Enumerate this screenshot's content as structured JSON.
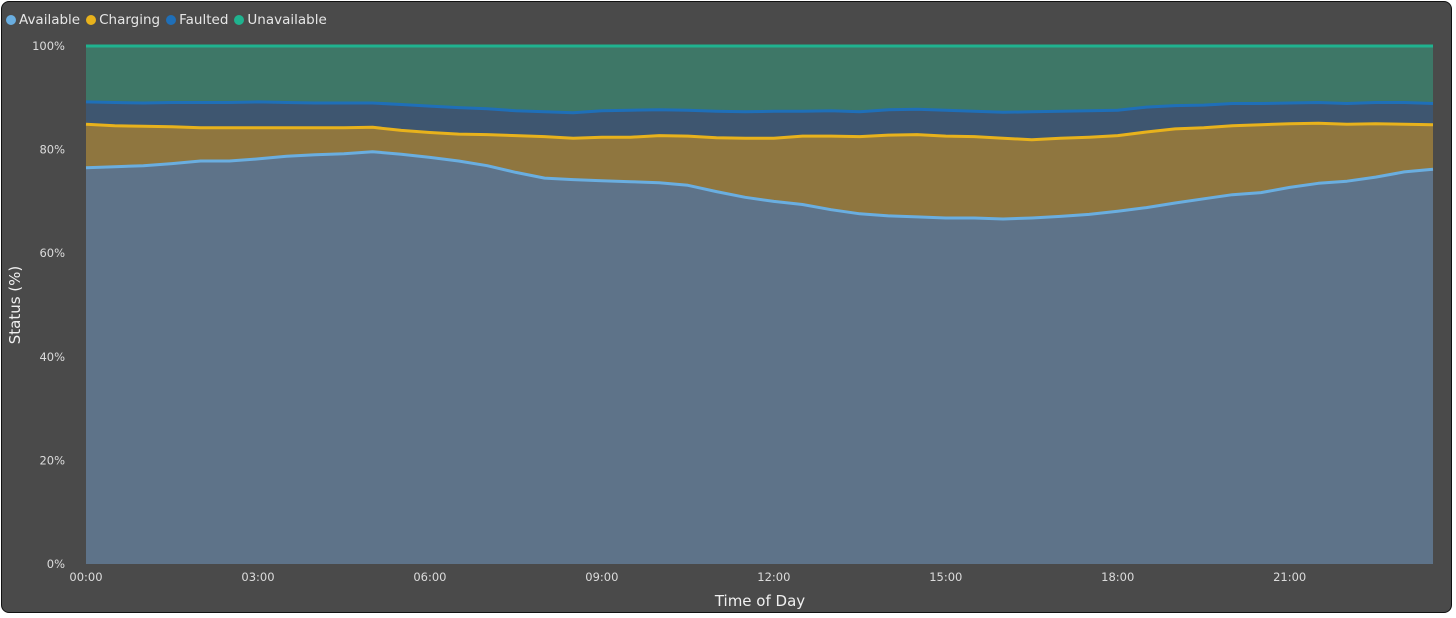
{
  "chart_data": {
    "type": "area",
    "stacked": true,
    "xlabel": "Time of Day",
    "ylabel": "Status (%)",
    "ylim": [
      0,
      100
    ],
    "y_ticks": [
      "0%",
      "20%",
      "40%",
      "60%",
      "80%",
      "100%"
    ],
    "x_ticks": [
      "00:00",
      "03:00",
      "06:00",
      "09:00",
      "12:00",
      "15:00",
      "18:00",
      "21:00"
    ],
    "legend_position": "top-left",
    "x": [
      "00:00",
      "00:30",
      "01:00",
      "01:30",
      "02:00",
      "02:30",
      "03:00",
      "03:30",
      "04:00",
      "04:30",
      "05:00",
      "05:30",
      "06:00",
      "06:30",
      "07:00",
      "07:30",
      "08:00",
      "08:30",
      "09:00",
      "09:30",
      "10:00",
      "10:30",
      "11:00",
      "11:30",
      "12:00",
      "12:30",
      "13:00",
      "13:30",
      "14:00",
      "14:30",
      "15:00",
      "15:30",
      "16:00",
      "16:30",
      "17:00",
      "17:30",
      "18:00",
      "18:30",
      "19:00",
      "19:30",
      "20:00",
      "20:30",
      "21:00",
      "21:30",
      "22:00",
      "22:30",
      "23:00",
      "23:30"
    ],
    "series": [
      {
        "name": "Available",
        "color": "#6aaee0",
        "values": [
          76.5,
          76.7,
          76.9,
          77.3,
          77.8,
          77.8,
          78.2,
          78.7,
          79.0,
          79.2,
          79.6,
          79.1,
          78.5,
          77.8,
          76.9,
          75.6,
          74.5,
          74.2,
          74.0,
          73.8,
          73.6,
          73.1,
          71.9,
          70.8,
          70.0,
          69.4,
          68.4,
          67.6,
          67.2,
          67.0,
          66.8,
          66.8,
          66.6,
          66.8,
          67.1,
          67.5,
          68.1,
          68.8,
          69.7,
          70.5,
          71.3,
          71.7,
          72.7,
          73.5,
          73.9,
          74.7,
          75.7,
          76.2
        ]
      },
      {
        "name": "Charging",
        "color": "#e8b21c",
        "values": [
          8.4,
          7.9,
          7.6,
          7.1,
          6.4,
          6.4,
          6.0,
          5.5,
          5.2,
          5.0,
          4.7,
          4.6,
          4.8,
          5.2,
          6.0,
          7.1,
          8.0,
          8.0,
          8.4,
          8.6,
          9.1,
          9.5,
          10.4,
          11.4,
          12.2,
          13.2,
          14.2,
          14.9,
          15.6,
          15.9,
          15.8,
          15.7,
          15.6,
          15.1,
          15.1,
          14.9,
          14.6,
          14.6,
          14.3,
          13.7,
          13.3,
          13.1,
          12.3,
          11.6,
          11.0,
          10.3,
          9.2,
          8.6
        ]
      },
      {
        "name": "Faulted",
        "color": "#1f6fb8",
        "values": [
          4.3,
          4.5,
          4.5,
          4.7,
          4.9,
          4.9,
          5.0,
          4.9,
          4.8,
          4.8,
          4.7,
          5.0,
          5.1,
          5.1,
          5.0,
          4.8,
          4.8,
          4.9,
          5.1,
          5.2,
          5.0,
          5.0,
          5.1,
          5.1,
          5.2,
          4.8,
          4.9,
          4.8,
          4.9,
          4.9,
          5.0,
          4.9,
          5.0,
          5.4,
          5.2,
          5.1,
          4.9,
          4.8,
          4.5,
          4.4,
          4.3,
          4.1,
          4.0,
          4.0,
          4.0,
          4.1,
          4.2,
          4.1
        ]
      },
      {
        "name": "Unavailable",
        "color": "#1fb38f",
        "values": [
          10.8,
          10.9,
          11.0,
          10.9,
          10.9,
          10.9,
          10.8,
          10.9,
          11.0,
          11.0,
          11.0,
          11.3,
          11.6,
          11.9,
          12.1,
          12.5,
          12.7,
          12.9,
          12.5,
          12.4,
          12.3,
          12.4,
          12.6,
          12.7,
          12.6,
          12.6,
          12.5,
          12.7,
          12.3,
          12.2,
          12.4,
          12.6,
          12.8,
          12.7,
          12.6,
          12.5,
          12.4,
          11.8,
          11.5,
          11.4,
          11.1,
          11.1,
          11.0,
          10.9,
          11.1,
          10.9,
          10.9,
          11.1
        ]
      }
    ]
  }
}
